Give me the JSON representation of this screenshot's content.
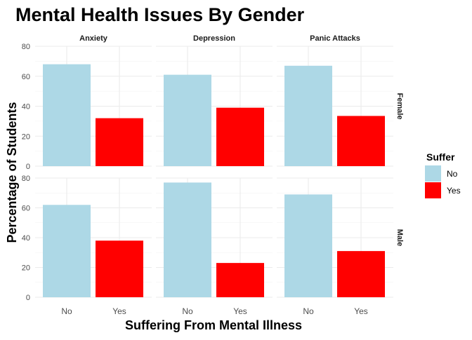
{
  "chart_data": {
    "type": "bar",
    "title": "Mental Health Issues By Gender",
    "xlabel": "Suffering From Mental Illness",
    "ylabel": "Percentage of Students",
    "categories": [
      "No",
      "Yes"
    ],
    "ylim": [
      0,
      80
    ],
    "yticks": [
      0,
      20,
      40,
      60,
      80
    ],
    "grid": true,
    "legend": {
      "title": "Suffer",
      "placement": "right",
      "entries": [
        {
          "label": "No",
          "color": "#add8e6"
        },
        {
          "label": "Yes",
          "color": "#ff0000"
        }
      ]
    },
    "facet_columns": [
      "Anxiety",
      "Depression",
      "Panic Attacks"
    ],
    "facet_rows": [
      "Female",
      "Male"
    ],
    "panels": [
      {
        "row": "Female",
        "col": "Anxiety",
        "values": [
          68,
          32
        ]
      },
      {
        "row": "Female",
        "col": "Depression",
        "values": [
          61,
          39
        ]
      },
      {
        "row": "Female",
        "col": "Panic Attacks",
        "values": [
          67,
          33.5
        ]
      },
      {
        "row": "Male",
        "col": "Anxiety",
        "values": [
          62,
          38
        ]
      },
      {
        "row": "Male",
        "col": "Depression",
        "values": [
          77,
          23
        ]
      },
      {
        "row": "Male",
        "col": "Panic Attacks",
        "values": [
          69,
          31
        ]
      }
    ]
  }
}
